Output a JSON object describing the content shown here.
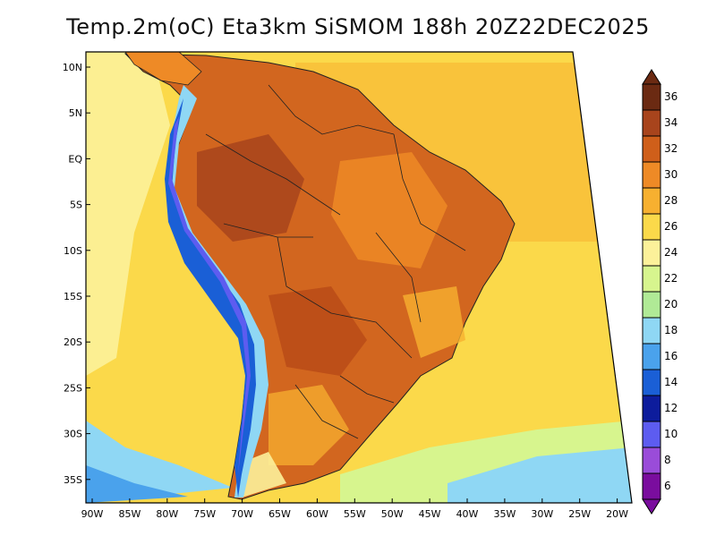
{
  "title": "Temp.2m(oC) Eta3km SiSMOM 188h 20Z22DEC2025",
  "axes": {
    "lat_labels": [
      "10N",
      "5N",
      "EQ",
      "5S",
      "10S",
      "15S",
      "20S",
      "25S",
      "30S",
      "35S"
    ],
    "lon_labels": [
      "90W",
      "85W",
      "80W",
      "75W",
      "70W",
      "65W",
      "60W",
      "55W",
      "50W",
      "45W",
      "40W",
      "35W",
      "30W",
      "25W",
      "20W"
    ]
  },
  "colorbar": {
    "labels": [
      "36",
      "34",
      "32",
      "30",
      "28",
      "26",
      "24",
      "22",
      "20",
      "18",
      "16",
      "14",
      "12",
      "10",
      "8",
      "6"
    ],
    "colors": [
      "#6b2a12",
      "#a8441c",
      "#cf5f1a",
      "#ee8a26",
      "#f7b030",
      "#fbd94a",
      "#fcf19a",
      "#d7f58e",
      "#b0ea96",
      "#8fd7f4",
      "#4aa2ec",
      "#1a5fd6",
      "#0d1c9c",
      "#5d5cf0",
      "#9a4cd9",
      "#7a0d9e"
    ]
  },
  "map": {
    "ocean_color": "#f3e26a",
    "land_colors": [
      "#d2661f",
      "#b84a16",
      "#ee8a26",
      "#f7b030"
    ],
    "cold_colors": [
      "#8fd7f4",
      "#4aa2ec",
      "#1a5fd6",
      "#5d5cf0"
    ]
  }
}
